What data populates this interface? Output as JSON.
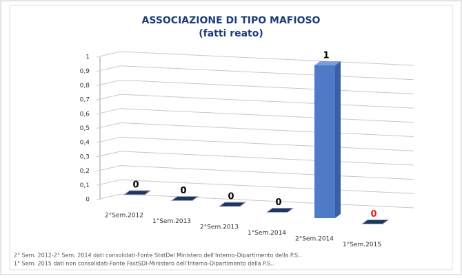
{
  "chart_data": {
    "type": "bar3d",
    "title": [
      "ASSOCIAZIONE DI TIPO MAFIOSO",
      "(fatti reato)"
    ],
    "categories": [
      "2°Sem.2012",
      "1°Sem.2013",
      "2°Sem.2013",
      "1°Sem.2014",
      "2°Sem.2014",
      "1°Sem.2015"
    ],
    "values": [
      0,
      0,
      0,
      0,
      1,
      0
    ],
    "value_label_colors": [
      "#000000",
      "#000000",
      "#000000",
      "#000000",
      "#000000",
      "#e02020"
    ],
    "color": "#4f7ac7",
    "ylim": [
      0,
      1
    ],
    "yticks": [
      0,
      {
        "value": 0.1,
        "label": "0,1"
      },
      {
        "value": 0.2,
        "label": "0,2"
      },
      {
        "value": 0.3,
        "label": "0,3"
      },
      {
        "value": 0.4,
        "label": "0,4"
      },
      {
        "value": 0.5,
        "label": "0,5"
      },
      {
        "value": 0.6,
        "label": "0,6"
      },
      {
        "value": 0.7,
        "label": "0,7"
      },
      {
        "value": 0.8,
        "label": "0,8"
      },
      {
        "value": 0.9,
        "label": "0,9"
      },
      1
    ],
    "grid": true,
    "notes": [
      "2° Sem. 2012-2° Sem. 2014 dati consolidati-Fonte StatDel Ministero dell'Interno-Dipartimento della P.S..",
      "1° Sem. 2015 dati non consolidati-Fonte FastSDI-Ministero dell'Interno-Dipartimento della P.S.."
    ]
  }
}
